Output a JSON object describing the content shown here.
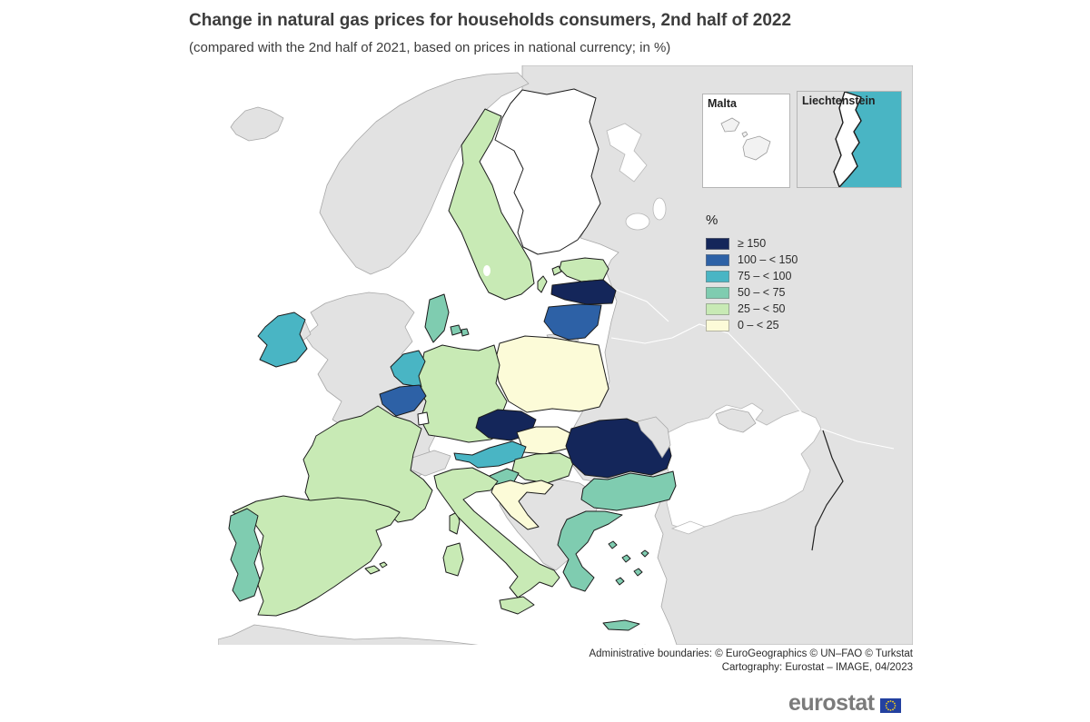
{
  "title": "Change in natural gas prices for households consumers, 2nd half of 2022",
  "subtitle": "(compared with the 2nd half of 2021, based on prices in national currency; in %)",
  "insets": {
    "malta_label": "Malta",
    "liechtenstein_label": "Liechtenstein"
  },
  "legend": {
    "title": "%",
    "classes": [
      {
        "label": "≥ 150",
        "color": "#14265a"
      },
      {
        "label": "100 – < 150",
        "color": "#2d61a6"
      },
      {
        "label": "75 – < 100",
        "color": "#49b5c4"
      },
      {
        "label": "50 – < 75",
        "color": "#7fccb0"
      },
      {
        "label": "25 – < 50",
        "color": "#c8eab5"
      },
      {
        "label": "0 – < 25",
        "color": "#fcfbd8"
      }
    ],
    "no_data_color": "#e2e2e2",
    "sea_color": "#ffffff"
  },
  "map": {
    "type": "choropleth",
    "regions": [
      {
        "id": "czechia",
        "name": "Czechia",
        "class": "≥ 150"
      },
      {
        "id": "latvia",
        "name": "Latvia",
        "class": "≥ 150"
      },
      {
        "id": "romania",
        "name": "Romania",
        "class": "≥ 150"
      },
      {
        "id": "belgium",
        "name": "Belgium",
        "class": "100 – < 150"
      },
      {
        "id": "lithuania",
        "name": "Lithuania",
        "class": "100 – < 150"
      },
      {
        "id": "ireland",
        "name": "Ireland",
        "class": "75 – < 100"
      },
      {
        "id": "netherlands",
        "name": "Netherlands",
        "class": "75 – < 100"
      },
      {
        "id": "austria",
        "name": "Austria",
        "class": "75 – < 100"
      },
      {
        "id": "denmark",
        "name": "Denmark",
        "class": "50 – < 75"
      },
      {
        "id": "portugal",
        "name": "Portugal",
        "class": "50 – < 75"
      },
      {
        "id": "slovenia",
        "name": "Slovenia",
        "class": "50 – < 75"
      },
      {
        "id": "bulgaria",
        "name": "Bulgaria",
        "class": "50 – < 75"
      },
      {
        "id": "greece",
        "name": "Greece",
        "class": "50 – < 75"
      },
      {
        "id": "sweden",
        "name": "Sweden",
        "class": "25 – < 50"
      },
      {
        "id": "estonia",
        "name": "Estonia",
        "class": "25 – < 50"
      },
      {
        "id": "germany",
        "name": "Germany",
        "class": "25 – < 50"
      },
      {
        "id": "france",
        "name": "France",
        "class": "25 – < 50"
      },
      {
        "id": "spain",
        "name": "Spain",
        "class": "25 – < 50"
      },
      {
        "id": "italy",
        "name": "Italy",
        "class": "25 – < 50"
      },
      {
        "id": "hungary",
        "name": "Hungary",
        "class": "25 – < 50"
      },
      {
        "id": "poland",
        "name": "Poland",
        "class": "0 – < 25"
      },
      {
        "id": "slovakia",
        "name": "Slovakia",
        "class": "0 – < 25"
      },
      {
        "id": "croatia",
        "name": "Croatia",
        "class": "0 – < 25"
      },
      {
        "id": "finland",
        "name": "Finland",
        "class": "no-data",
        "fill": "#ffffff"
      },
      {
        "id": "luxembourg",
        "name": "Luxembourg",
        "class": "no-data",
        "fill": "#ffffff"
      },
      {
        "id": "malta",
        "name": "Malta",
        "class": "no-data",
        "fill": "#f2f2f2"
      },
      {
        "id": "liechtenstein",
        "name": "Liechtenstein",
        "class": "no-data",
        "fill": "#ffffff"
      },
      {
        "id": "norway",
        "name": "Norway",
        "class": "no-data"
      },
      {
        "id": "iceland",
        "name": "Iceland",
        "class": "no-data"
      },
      {
        "id": "united-kingdom",
        "name": "United Kingdom",
        "class": "no-data"
      },
      {
        "id": "switzerland",
        "name": "Switzerland",
        "class": "no-data"
      },
      {
        "id": "western-balkans",
        "name": "Western Balkans",
        "class": "no-data"
      },
      {
        "id": "moldova",
        "name": "Moldova",
        "class": "no-data"
      },
      {
        "id": "non-eu-landmass",
        "name": "Non-EU landmass",
        "class": "no-data"
      },
      {
        "id": "kaliningrad",
        "name": "Kaliningrad",
        "class": "no-data"
      },
      {
        "id": "africa",
        "name": "Northern Africa",
        "class": "no-data"
      },
      {
        "id": "faroe",
        "name": "Faroe Islands",
        "class": "no-data"
      }
    ]
  },
  "footer": {
    "line1": "Administrative boundaries: © EuroGeographics © UN–FAO © Turkstat",
    "line2": "Cartography: Eurostat – IMAGE, 04/2023"
  },
  "logo": {
    "text": "eurostat",
    "flag_color": "#2341a0",
    "star_color": "#f7d117"
  }
}
